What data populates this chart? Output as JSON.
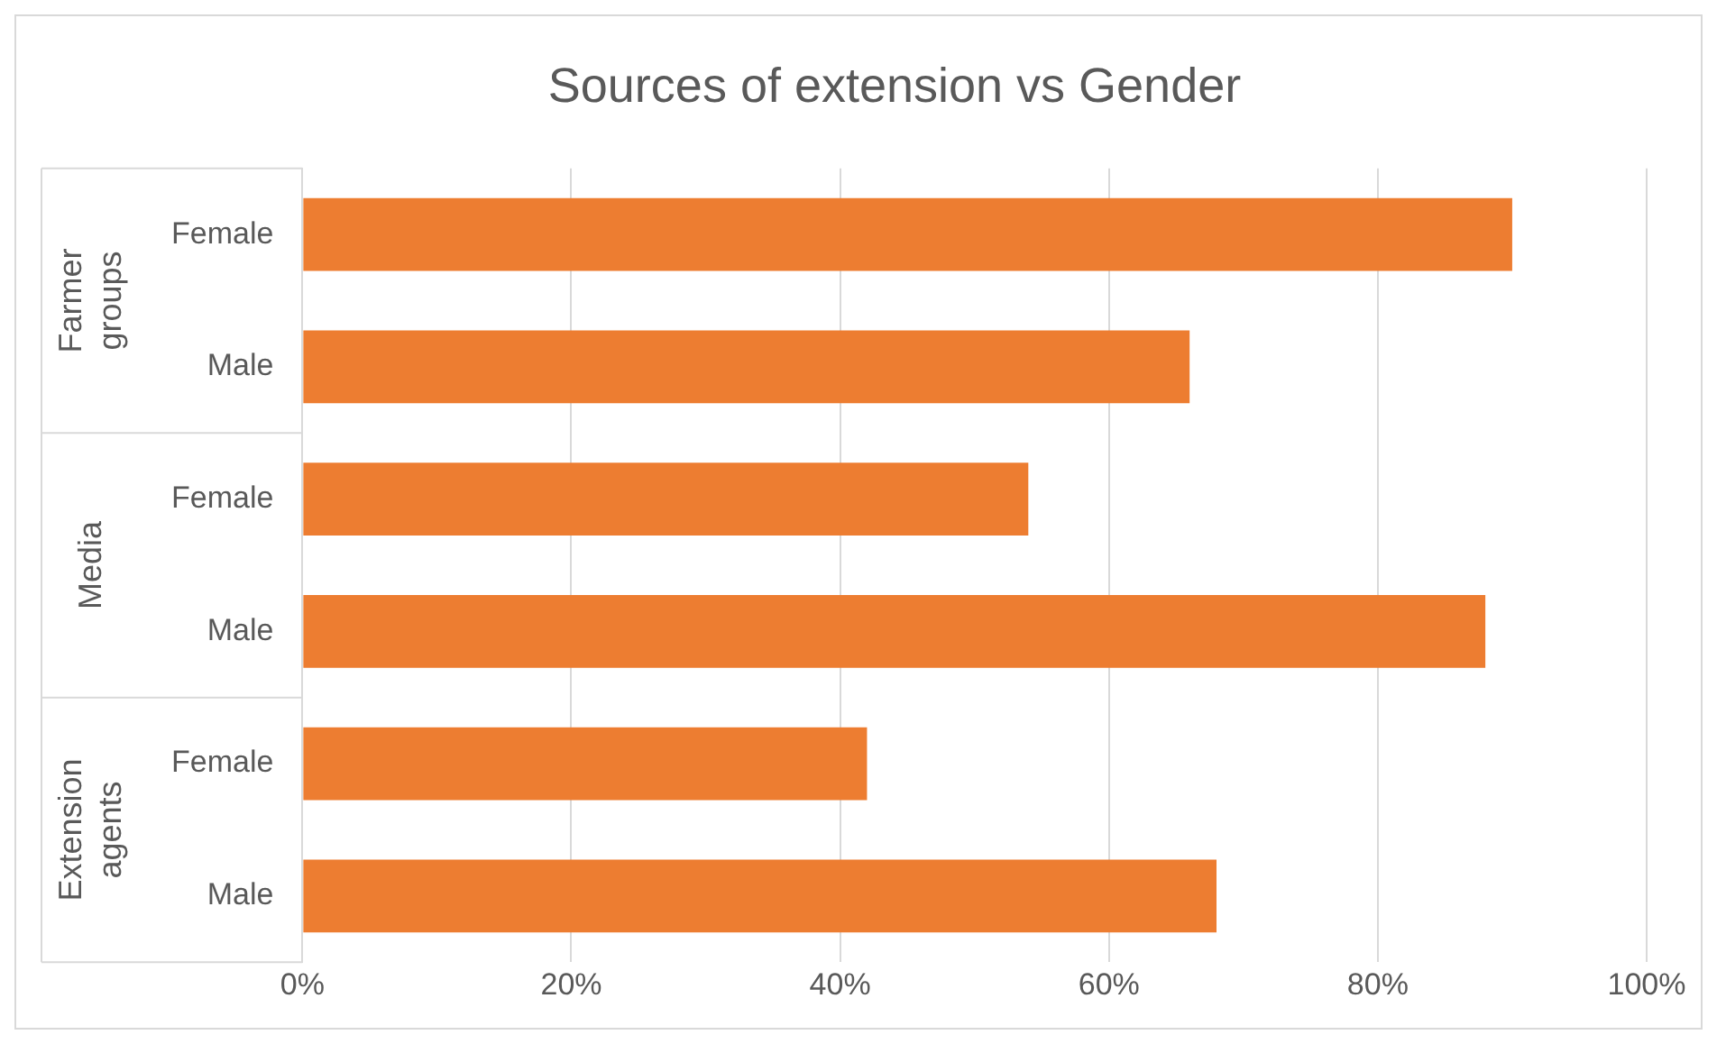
{
  "chart_data": {
    "type": "bar",
    "orientation": "horizontal",
    "title": "Sources of extension vs Gender",
    "categories": [
      "Female",
      "Male",
      "Female",
      "Male",
      "Female",
      "Male"
    ],
    "values": [
      90,
      66,
      54,
      88,
      42,
      68
    ],
    "color": "#ed7d31",
    "annotations": [
      "Farmer groups",
      "Media",
      "Extension agents"
    ],
    "xlim": [
      0,
      100
    ],
    "xticks": [
      {
        "value": 0,
        "label": "0%"
      },
      {
        "value": 20,
        "label": "20%"
      },
      {
        "value": 40,
        "label": "40%"
      },
      {
        "value": 60,
        "label": "60%"
      },
      {
        "value": 80,
        "label": "80%"
      },
      {
        "value": 100,
        "label": "100%"
      }
    ],
    "grid": "x",
    "legend": false
  }
}
